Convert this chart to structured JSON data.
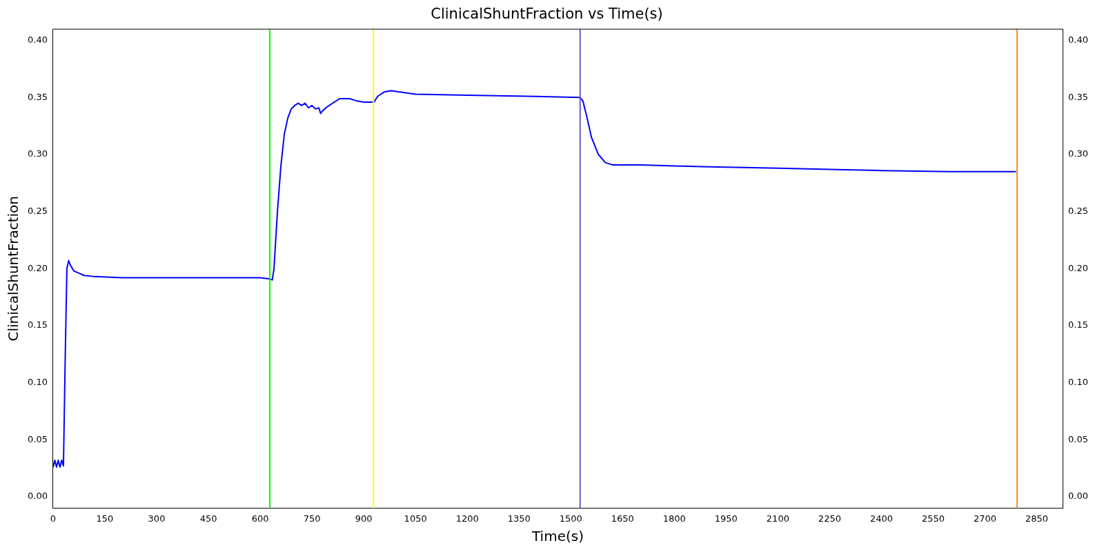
{
  "chart_data": {
    "type": "line",
    "title": "ClinicalShuntFraction vs Time(s)",
    "xlabel": "Time(s)",
    "ylabel": "ClinicalShuntFraction",
    "xlim": [
      0,
      2925
    ],
    "xticks": [
      0,
      150,
      300,
      450,
      600,
      750,
      900,
      1050,
      1200,
      1350,
      1500,
      1650,
      1800,
      1950,
      2100,
      2250,
      2400,
      2550,
      2700,
      2850
    ],
    "ylim": [
      -0.01,
      0.41
    ],
    "yticks": [
      {
        "value": 0,
        "label": "0.00"
      },
      {
        "value": 0.05,
        "label": "0.05"
      },
      {
        "value": 0.1,
        "label": "0.10"
      },
      {
        "value": 0.15,
        "label": "0.15"
      },
      {
        "value": 0.2,
        "label": "0.20"
      },
      {
        "value": 0.25,
        "label": "0.25"
      },
      {
        "value": 0.3,
        "label": "0.30"
      },
      {
        "value": 0.35,
        "label": "0.35"
      },
      {
        "value": 0.4,
        "label": "0.40"
      }
    ],
    "y2lim": [
      -0.01,
      0.41
    ],
    "y2ticks": [
      {
        "value": 0,
        "label": "0.00"
      },
      {
        "value": 0.05,
        "label": "0.05"
      },
      {
        "value": 0.1,
        "label": "0.10"
      },
      {
        "value": 0.15,
        "label": "0.15"
      },
      {
        "value": 0.2,
        "label": "0.20"
      },
      {
        "value": 0.25,
        "label": "0.25"
      },
      {
        "value": 0.3,
        "label": "0.30"
      },
      {
        "value": 0.35,
        "label": "0.35"
      },
      {
        "value": 0.4,
        "label": "0.40"
      }
    ],
    "grid": false,
    "legend": false,
    "marker": "none",
    "line_style": "solid",
    "series": [
      {
        "color": "#0000ff",
        "x": [
          0,
          5,
          10,
          15,
          20,
          25,
          30,
          35,
          40,
          45,
          50,
          60,
          75,
          90,
          120,
          200,
          400,
          600,
          628,
          635,
          640,
          650,
          660,
          670,
          680,
          690,
          700,
          710,
          720,
          730,
          740,
          750,
          760,
          770,
          775,
          780,
          790,
          800,
          830,
          860,
          880,
          900,
          925,
          930,
          940,
          960,
          980,
          1000,
          1050,
          1200,
          1400,
          1527,
          1535,
          1545,
          1560,
          1580,
          1600,
          1620,
          1650,
          1700,
          1800,
          1950,
          2100,
          2250,
          2400,
          2600,
          2790
        ],
        "values": [
          0.026,
          0.032,
          0.026,
          0.032,
          0.026,
          0.032,
          0.027,
          0.12,
          0.2,
          0.207,
          0.203,
          0.198,
          0.196,
          0.194,
          0.193,
          0.192,
          0.192,
          0.192,
          0.191,
          0.19,
          0.2,
          0.25,
          0.29,
          0.318,
          0.332,
          0.34,
          0.343,
          0.345,
          0.343,
          0.345,
          0.341,
          0.343,
          0.34,
          0.341,
          0.336,
          0.338,
          0.341,
          0.343,
          0.349,
          0.349,
          0.347,
          0.346,
          0.346,
          0.346,
          0.351,
          0.355,
          0.356,
          0.355,
          0.353,
          0.352,
          0.351,
          0.35,
          0.347,
          0.335,
          0.315,
          0.3,
          0.293,
          0.291,
          0.291,
          0.291,
          0.29,
          0.289,
          0.288,
          0.287,
          0.286,
          0.285,
          0.285
        ]
      }
    ],
    "ref_lines": [
      {
        "axis": "x",
        "value": 628,
        "color": "#00ff00"
      },
      {
        "axis": "x",
        "value": 928,
        "color": "#ffff00"
      },
      {
        "axis": "x",
        "value": 1527,
        "color": "#6a5acd"
      },
      {
        "axis": "x",
        "value": 2793,
        "color": "#ff8c1a"
      }
    ]
  }
}
